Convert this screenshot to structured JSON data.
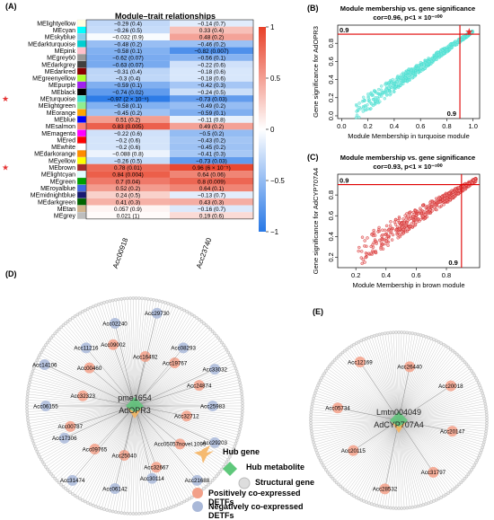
{
  "panels": {
    "a_label": "(A)",
    "b_label": "(B)",
    "c_label": "(C)",
    "d_label": "(D)",
    "e_label": "(E)"
  },
  "heatmap": {
    "title": "Module–trait relationships",
    "columns": [
      "Acc00918",
      "Acc23740"
    ],
    "modules": [
      {
        "name": "MElightyellow",
        "color": "#ffffe0",
        "cells": [
          {
            "text": "−0.29 (0.4)",
            "v": -0.29
          },
          {
            "text": "−0.14 (0.7)",
            "v": -0.14
          }
        ]
      },
      {
        "name": "MEcyan",
        "color": "#00ffff",
        "cells": [
          {
            "text": "−0.26 (0.5)",
            "v": -0.26
          },
          {
            "text": "0.33 (0.4)",
            "v": 0.33
          }
        ]
      },
      {
        "name": "MEskyblue",
        "color": "#87ceeb",
        "cells": [
          {
            "text": "−0.032 (0.9)",
            "v": -0.032
          },
          {
            "text": "0.48 (0.2)",
            "v": 0.48
          }
        ]
      },
      {
        "name": "MEdarkturquoise",
        "color": "#00ced1",
        "cells": [
          {
            "text": "−0.48 (0.2)",
            "v": -0.48
          },
          {
            "text": "−0.46 (0.2)",
            "v": -0.46
          }
        ]
      },
      {
        "name": "MEpink",
        "color": "#ffc0cb",
        "cells": [
          {
            "text": "−0.58 (0.1)",
            "v": -0.58
          },
          {
            "text": "−0.82 (0.007)",
            "v": -0.82
          }
        ]
      },
      {
        "name": "MEgrey60",
        "color": "#999999",
        "cells": [
          {
            "text": "−0.62 (0.07)",
            "v": -0.62
          },
          {
            "text": "−0.56 (0.1)",
            "v": -0.56
          }
        ]
      },
      {
        "name": "MEdarkgrey",
        "color": "#404040",
        "cells": [
          {
            "text": "−0.63 (0.07)",
            "v": -0.63
          },
          {
            "text": "−0.22 (0.6)",
            "v": -0.22
          }
        ]
      },
      {
        "name": "MEdarkred",
        "color": "#8b0000",
        "cells": [
          {
            "text": "−0.31 (0.4)",
            "v": -0.31
          },
          {
            "text": "−0.18 (0.6)",
            "v": -0.18
          }
        ]
      },
      {
        "name": "MEgreenyellow",
        "color": "#adff2f",
        "cells": [
          {
            "text": "−0.3 (0.4)",
            "v": -0.3
          },
          {
            "text": "−0.18 (0.6)",
            "v": -0.18
          }
        ]
      },
      {
        "name": "MEpurple",
        "color": "#a020f0",
        "cells": [
          {
            "text": "−0.59 (0.1)",
            "v": -0.59
          },
          {
            "text": "−0.42 (0.3)",
            "v": -0.42
          }
        ]
      },
      {
        "name": "MEblack",
        "color": "#000000",
        "cells": [
          {
            "text": "−0.74 (0.02)",
            "v": -0.74
          },
          {
            "text": "−0.24 (0.5)",
            "v": -0.24
          }
        ]
      },
      {
        "name": "MEturquoise",
        "color": "#40e0d0",
        "star": true,
        "cells": [
          {
            "text": "−0.97 (2 × 10⁻⁵)",
            "v": -0.97
          },
          {
            "text": "−0.73 (0.03)",
            "v": -0.73
          }
        ]
      },
      {
        "name": "MElightgreen",
        "color": "#90ee90",
        "cells": [
          {
            "text": "−0.58 (0.1)",
            "v": -0.58
          },
          {
            "text": "−0.49 (0.2)",
            "v": -0.49
          }
        ]
      },
      {
        "name": "MEorange",
        "color": "#ffa500",
        "cells": [
          {
            "text": "−0.45 (0.2)",
            "v": -0.45
          },
          {
            "text": "−0.59 (0.1)",
            "v": -0.59
          }
        ]
      },
      {
        "name": "MEblue",
        "color": "#0000ff",
        "cells": [
          {
            "text": "0.51 (0.2)",
            "v": 0.51
          },
          {
            "text": "−0.11 (0.8)",
            "v": -0.11
          }
        ]
      },
      {
        "name": "MEsalmon",
        "color": "#fa8072",
        "cells": [
          {
            "text": "0.83 (0.005)",
            "v": 0.83
          },
          {
            "text": "0.49 (0.2)",
            "v": 0.49
          }
        ]
      },
      {
        "name": "MEmagenta",
        "color": "#ff00ff",
        "cells": [
          {
            "text": "−0.22 (0.6)",
            "v": -0.22
          },
          {
            "text": "−0.5 (0.2)",
            "v": -0.5
          }
        ]
      },
      {
        "name": "MEred",
        "color": "#ff0000",
        "cells": [
          {
            "text": "−0.2 (0.6)",
            "v": -0.2
          },
          {
            "text": "−0.43 (0.2)",
            "v": -0.43
          }
        ]
      },
      {
        "name": "MEwhite",
        "color": "#ffffff",
        "cells": [
          {
            "text": "−0.2 (0.6)",
            "v": -0.2
          },
          {
            "text": "−0.45 (0.2)",
            "v": -0.45
          }
        ]
      },
      {
        "name": "MEdarkorange",
        "color": "#ff8c00",
        "cells": [
          {
            "text": "−0.088 (0.8)",
            "v": -0.088
          },
          {
            "text": "−0.41 (0.3)",
            "v": -0.41
          }
        ]
      },
      {
        "name": "MEyellow",
        "color": "#ffff00",
        "cells": [
          {
            "text": "−0.26 (0.5)",
            "v": -0.26
          },
          {
            "text": "−0.73 (0.03)",
            "v": -0.73
          }
        ]
      },
      {
        "name": "MEbrown",
        "color": "#a52a2a",
        "star": true,
        "cells": [
          {
            "text": "0.78 (0.01)",
            "v": 0.78
          },
          {
            "text": "0.96 (6 × 10⁻⁵)",
            "v": 0.96
          }
        ]
      },
      {
        "name": "MElightcyan",
        "color": "#e0ffff",
        "cells": [
          {
            "text": "0.84 (0.004)",
            "v": 0.84
          },
          {
            "text": "0.64 (0.06)",
            "v": 0.64
          }
        ]
      },
      {
        "name": "MEgreen",
        "color": "#00a000",
        "cells": [
          {
            "text": "0.7 (0.04)",
            "v": 0.7
          },
          {
            "text": "0.8 (0.009)",
            "v": 0.8
          }
        ]
      },
      {
        "name": "MEroyalblue",
        "color": "#4169e1",
        "cells": [
          {
            "text": "0.52 (0.2)",
            "v": 0.52
          },
          {
            "text": "0.64 (0.1)",
            "v": 0.64
          }
        ]
      },
      {
        "name": "MEmidnightblue",
        "color": "#191970",
        "cells": [
          {
            "text": "0.24 (0.5)",
            "v": 0.24
          },
          {
            "text": "−0.13 (0.7)",
            "v": -0.13
          }
        ]
      },
      {
        "name": "MEdarkgreen",
        "color": "#006400",
        "cells": [
          {
            "text": "0.41 (0.3)",
            "v": 0.41
          },
          {
            "text": "0.43 (0.3)",
            "v": 0.43
          }
        ]
      },
      {
        "name": "MEtan",
        "color": "#d2b48c",
        "cells": [
          {
            "text": "0.057 (0.9)",
            "v": 0.057
          },
          {
            "text": "−0.16 (0.7)",
            "v": -0.16
          }
        ]
      },
      {
        "name": "MEgrey",
        "color": "#bebebe",
        "cells": [
          {
            "text": "0.021 (1)",
            "v": 0.021
          },
          {
            "text": "0.19 (0.6)",
            "v": 0.19
          }
        ]
      }
    ],
    "colorbar_ticks": [
      "1",
      "0.5",
      "0",
      "−0.5",
      "−1"
    ]
  },
  "scatter_b": {
    "title_line1": "Module membership vs. gene significance",
    "title_line2": "cor=0.96, p<1 × 10⁻²⁰⁰",
    "xlabel": "Module Membership in turquoise module",
    "ylabel": "Gene significance for AdOPR3",
    "xticks": [
      "0.0",
      "0.2",
      "0.4",
      "0.6",
      "0.8",
      "1.0"
    ],
    "yticks": [
      "0.0",
      "0.2",
      "0.4",
      "0.6",
      "0.8"
    ],
    "ref_label_x": "0.9",
    "ref_label_y": "0.9",
    "point_color": "#40e0d0"
  },
  "scatter_c": {
    "title_line1": "Module membership vs. gene significance",
    "title_line2": "cor=0.93, p<1 × 10⁻²⁰⁰",
    "xlabel": "Module Membership in brown module",
    "ylabel": "Gene significance for AdCYP707A4",
    "xticks": [
      "0.2",
      "0.4",
      "0.6",
      "0.8"
    ],
    "yticks": [
      "0.2",
      "0.4",
      "0.6",
      "0.8"
    ],
    "ref_label_x": "0.9",
    "ref_label_y": "0.9",
    "point_color": "#cc1f1f"
  },
  "network_d": {
    "hub_gene": "AdOPR3",
    "hub_metabolite": "pme1654",
    "positive": [
      "Acc32712",
      "Acc05057novel.1099",
      "Acc32667",
      "Acc25040",
      "Acc09765",
      "Acc00787",
      "Acc32323",
      "Acc00460",
      "Acc09002",
      "Acc16492",
      "Acc19767",
      "Acc24874"
    ],
    "negative": [
      "Acc25983",
      "Acc29203",
      "Acc21688",
      "Acc30114",
      "Acc06142",
      "Acc31474",
      "Acc17306",
      "Acc06155",
      "Acc14106",
      "Acc11216",
      "Acc02240",
      "Acc29730",
      "Acc08293",
      "Acc33032"
    ]
  },
  "network_e": {
    "hub_gene": "AdCYP707A4",
    "hub_metabolite": "Lmtn004049",
    "positive": [
      "Acc20147",
      "Acc31797",
      "Acc28532",
      "Acc20115",
      "Acc05734",
      "Acc12169",
      "Acc26440",
      "Acc20018"
    ]
  },
  "legend": {
    "hub_gene": "Hub gene",
    "hub_metabolite": "Hub metabolite",
    "structural_gene": "Structural gene",
    "positive": "Positively co-expressed DETFs",
    "negative": "Negatively co-expressed DETFs"
  }
}
